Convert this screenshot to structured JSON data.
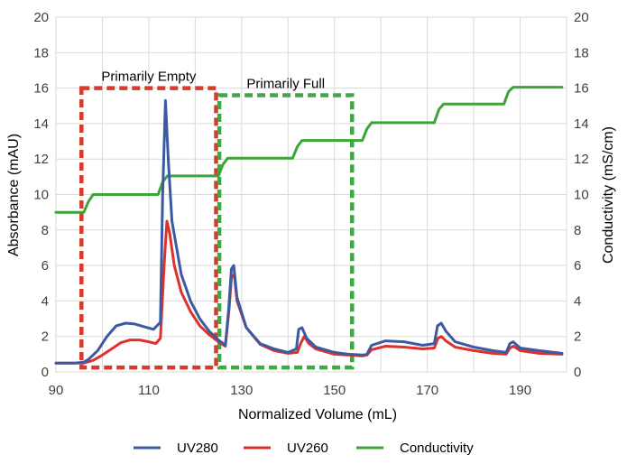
{
  "chart_data": {
    "type": "line",
    "xlabel": "Normalized Volume (mL)",
    "ylabel_left": "Absorbance (mAU)",
    "ylabel_right": "Conductivity (mS/cm)",
    "xlim": [
      90,
      200
    ],
    "ylim_left": [
      0,
      20
    ],
    "ylim_right": [
      0,
      20
    ],
    "x_ticks": [
      "90",
      "110",
      "130",
      "150",
      "170",
      "190"
    ],
    "y_ticks_left": [
      "0",
      "2",
      "4",
      "6",
      "8",
      "10",
      "12",
      "14",
      "16",
      "18",
      "20"
    ],
    "y_ticks_right": [
      "0",
      "2",
      "4",
      "6",
      "8",
      "10",
      "12",
      "14",
      "16",
      "18",
      "20"
    ],
    "grid": true,
    "legend_position": "bottom",
    "colors": {
      "UV280": "#3b5aa3",
      "UV260": "#e0302a",
      "Conductivity": "#3da43a",
      "grid": "#d9d9d9"
    },
    "series": [
      {
        "name": "UV280",
        "axis": "left",
        "x": [
          90,
          94,
          96,
          97,
          99,
          101,
          103,
          105,
          107,
          109,
          111,
          112.5,
          113.0,
          113.6,
          114.2,
          115,
          117,
          119,
          121,
          123,
          125,
          126.5,
          127.2,
          127.8,
          128.3,
          129,
          131,
          134,
          137,
          140,
          141.8,
          142.3,
          143.0,
          144,
          146,
          150,
          153,
          156,
          157,
          158,
          161,
          165,
          169,
          171.5,
          172.2,
          173,
          174,
          176,
          180,
          184,
          187,
          187.8,
          188.5,
          190,
          194,
          199
        ],
        "values": [
          0.5,
          0.5,
          0.55,
          0.7,
          1.2,
          2.0,
          2.6,
          2.75,
          2.7,
          2.55,
          2.4,
          2.8,
          10.0,
          15.3,
          12.0,
          8.5,
          5.5,
          4.0,
          3.0,
          2.3,
          1.8,
          1.5,
          3.5,
          5.8,
          6.0,
          4.2,
          2.5,
          1.6,
          1.3,
          1.1,
          1.3,
          2.4,
          2.5,
          1.9,
          1.4,
          1.1,
          1.0,
          0.95,
          1.0,
          1.5,
          1.75,
          1.7,
          1.5,
          1.6,
          2.6,
          2.75,
          2.3,
          1.7,
          1.4,
          1.2,
          1.1,
          1.6,
          1.7,
          1.35,
          1.2,
          1.05
        ]
      },
      {
        "name": "UV260",
        "axis": "left",
        "x": [
          90,
          94,
          96,
          98,
          100,
          102,
          104,
          106,
          108,
          110,
          111.5,
          112.5,
          113.3,
          113.9,
          114.5,
          115.5,
          117,
          119,
          121,
          123,
          125,
          126.5,
          127.3,
          127.8,
          128.4,
          129,
          131,
          134,
          137,
          140,
          142,
          142.7,
          143.5,
          144.5,
          146,
          150,
          153,
          156,
          157,
          158,
          161,
          165,
          169,
          171.5,
          172.3,
          173,
          174,
          176,
          180,
          184,
          187,
          187.8,
          188.6,
          190,
          194,
          199
        ],
        "values": [
          0.5,
          0.5,
          0.5,
          0.65,
          0.95,
          1.3,
          1.65,
          1.8,
          1.8,
          1.7,
          1.6,
          1.9,
          6.0,
          8.5,
          7.8,
          6.0,
          4.5,
          3.4,
          2.6,
          2.1,
          1.7,
          1.45,
          3.5,
          5.3,
          5.5,
          4.0,
          2.5,
          1.55,
          1.2,
          1.05,
          1.1,
          1.6,
          2.0,
          1.6,
          1.3,
          1.0,
          0.95,
          0.9,
          0.95,
          1.25,
          1.45,
          1.4,
          1.3,
          1.35,
          1.9,
          2.0,
          1.75,
          1.4,
          1.2,
          1.05,
          1.0,
          1.35,
          1.45,
          1.2,
          1.05,
          1.0
        ]
      },
      {
        "name": "Conductivity",
        "axis": "right",
        "x": [
          90,
          96,
          97,
          98,
          112,
          113,
          114,
          125,
          126,
          127,
          141,
          142,
          143,
          156,
          157,
          158,
          171.5,
          172.5,
          173.5,
          186.5,
          187.5,
          188.5,
          199
        ],
        "values": [
          9.0,
          9.0,
          9.6,
          10.0,
          10.0,
          10.7,
          11.05,
          11.05,
          11.7,
          12.05,
          12.05,
          12.7,
          13.05,
          13.05,
          13.7,
          14.05,
          14.05,
          14.8,
          15.1,
          15.1,
          15.8,
          16.05,
          16.05
        ]
      }
    ],
    "regions": [
      {
        "label": "Primarily Empty",
        "x0": 95.5,
        "x1": 124.5,
        "y0": 0.25,
        "y1": 16,
        "color": "#d93a2b"
      },
      {
        "label": "Primarily Full",
        "x0": 125.2,
        "x1": 153.8,
        "y0": 0.25,
        "y1": 15.6,
        "color": "#3fa844"
      }
    ]
  }
}
